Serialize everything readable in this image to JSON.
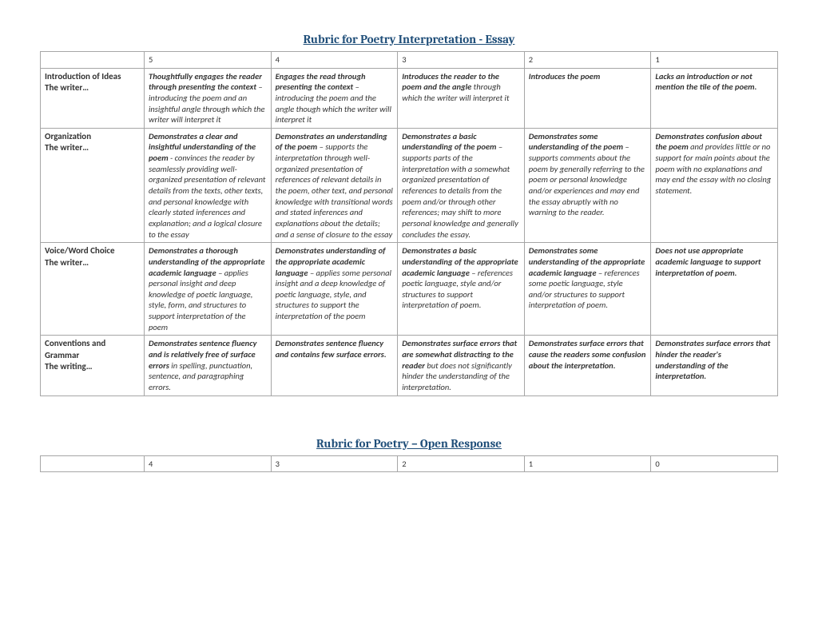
{
  "title1": "Rubric for Poetry Interpretation - Essay",
  "title2": "Rubric for Poetry – Open Response",
  "scores1": [
    "5",
    "4",
    "3",
    "2",
    "1"
  ],
  "scores2": [
    "4",
    "3",
    "2",
    "1",
    "0"
  ],
  "rows": [
    {
      "cat1": "Introduction of Ideas",
      "cat2": "The writer…",
      "c5b": "Thoughtfully engages the reader through presenting the context",
      "c5r": " – introducing the poem and an insightful angle through which the writer will interpret it",
      "c4b": "Engages the read through presenting the context",
      "c4r": " – introducing the poem and the angle though which the writer will interpret it",
      "c3b": "Introduces the reader to the poem and the angle",
      "c3r": " through which the writer will interpret it",
      "c2b": "Introduces the poem",
      "c2r": "",
      "c1b": "Lacks an introduction or not mention the tile of the poem.",
      "c1r": ""
    },
    {
      "cat1": "Organization",
      "cat2": "The writer…",
      "c5b": "Demonstrates a clear and insightful understanding of the poem",
      "c5r": "  - convinces the reader by seamlessly providing well-organized presentation of relevant details  from the texts, other texts, and personal knowledge with clearly stated inferences and explanation; and a logical closure to the essay",
      "c4b": "Demonstrates an understanding of the poem",
      "c4r": " – supports the interpretation through well-organized presentation of references of relevant details in the poem, other text, and personal knowledge with transitional words and stated inferences and explanations about the details; and a sense of closure to the essay",
      "c3b": "Demonstrates a basic understanding of the poem",
      "c3r": " – supports parts of the interpretation with a somewhat organized presentation of references to details from the poem and/or through other references; may shift to more personal knowledge and generally concludes the essay.",
      "c2b": "Demonstrates some understanding of the poem",
      "c2r": " – supports comments about the poem by generally referring to the poem or personal knowledge and/or experiences and may end the essay abruptly with no warning to the reader.",
      "c1b": "Demonstrates confusion about the poem",
      "c1r": " and provides little or no support for main points about the poem with no explanations and may end the essay with no closing statement."
    },
    {
      "cat1": "Voice/Word Choice",
      "cat2": "The writer…",
      "c5b": "Demonstrates a thorough understanding of the appropriate academic language",
      "c5r": " – applies personal insight and deep knowledge of poetic language, style, form, and structures  to support interpretation of the poem",
      "c4b": "Demonstrates understanding of the appropriate academic language",
      "c4r": " – applies some personal insight and a deep knowledge of poetic language, style, and structures  to support the interpretation of the poem",
      "c3b": "Demonstrates a basic understanding of the appropriate academic language",
      "c3r": " – references poetic language, style and/or structures to support interpretation of poem.",
      "c2b": "Demonstrates some understanding of the appropriate academic language",
      "c2r": " – references some poetic language, style and/or structures to support interpretation of poem.",
      "c1b": "Does not use appropriate academic language to support interpretation of poem.",
      "c1r": ""
    },
    {
      "cat1": "Conventions and Grammar",
      "cat2": "The writing…",
      "c5b": "Demonstrates sentence fluency and is relatively free of surface errors",
      "c5r": " in spelling, punctuation, sentence, and paragraphing errors.",
      "c4b": "Demonstrates sentence fluency and contains few surface errors.",
      "c4r": "",
      "c3b": "Demonstrates surface errors that are somewhat distracting to the reader",
      "c3r": " but does not significantly hinder the understanding of the interpretation.",
      "c2b": "Demonstrates surface errors that cause the readers some confusion about the interpretation.",
      "c2r": "",
      "c1b": "Demonstrates surface errors that hinder the reader's understanding of the interpretation.",
      "c1r": ""
    }
  ]
}
